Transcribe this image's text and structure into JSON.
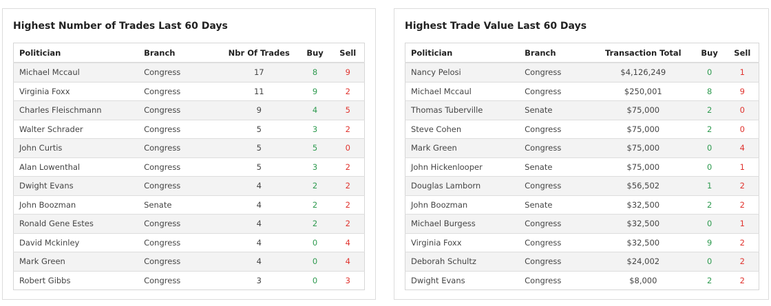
{
  "colors": {
    "buy": "#2e9a4f",
    "sell": "#e0332e",
    "row_alt": "#f3f3f3",
    "border": "#dddddd"
  },
  "trades_card": {
    "title": "Highest Number of Trades Last 60 Days",
    "columns": [
      "Politician",
      "Branch",
      "Nbr Of Trades",
      "Buy",
      "Sell"
    ],
    "rows": [
      {
        "politician": "Michael Mccaul",
        "branch": "Congress",
        "trades": "17",
        "buy": "8",
        "sell": "9"
      },
      {
        "politician": "Virginia Foxx",
        "branch": "Congress",
        "trades": "11",
        "buy": "9",
        "sell": "2"
      },
      {
        "politician": "Charles Fleischmann",
        "branch": "Congress",
        "trades": "9",
        "buy": "4",
        "sell": "5"
      },
      {
        "politician": "Walter Schrader",
        "branch": "Congress",
        "trades": "5",
        "buy": "3",
        "sell": "2"
      },
      {
        "politician": "John Curtis",
        "branch": "Congress",
        "trades": "5",
        "buy": "5",
        "sell": "0"
      },
      {
        "politician": "Alan Lowenthal",
        "branch": "Congress",
        "trades": "5",
        "buy": "3",
        "sell": "2"
      },
      {
        "politician": "Dwight Evans",
        "branch": "Congress",
        "trades": "4",
        "buy": "2",
        "sell": "2"
      },
      {
        "politician": "John Boozman",
        "branch": "Senate",
        "trades": "4",
        "buy": "2",
        "sell": "2"
      },
      {
        "politician": "Ronald Gene Estes",
        "branch": "Congress",
        "trades": "4",
        "buy": "2",
        "sell": "2"
      },
      {
        "politician": "David Mckinley",
        "branch": "Congress",
        "trades": "4",
        "buy": "0",
        "sell": "4"
      },
      {
        "politician": "Mark Green",
        "branch": "Congress",
        "trades": "4",
        "buy": "0",
        "sell": "4"
      },
      {
        "politician": "Robert Gibbs",
        "branch": "Congress",
        "trades": "3",
        "buy": "0",
        "sell": "3"
      }
    ]
  },
  "value_card": {
    "title": "Highest Trade Value Last 60 Days",
    "columns": [
      "Politician",
      "Branch",
      "Transaction Total",
      "Buy",
      "Sell"
    ],
    "rows": [
      {
        "politician": "Nancy Pelosi",
        "branch": "Congress",
        "total": "$4,126,249",
        "buy": "0",
        "sell": "1"
      },
      {
        "politician": "Michael Mccaul",
        "branch": "Congress",
        "total": "$250,001",
        "buy": "8",
        "sell": "9"
      },
      {
        "politician": "Thomas Tuberville",
        "branch": "Senate",
        "total": "$75,000",
        "buy": "2",
        "sell": "0"
      },
      {
        "politician": "Steve Cohen",
        "branch": "Congress",
        "total": "$75,000",
        "buy": "2",
        "sell": "0"
      },
      {
        "politician": "Mark Green",
        "branch": "Congress",
        "total": "$75,000",
        "buy": "0",
        "sell": "4"
      },
      {
        "politician": "John Hickenlooper",
        "branch": "Senate",
        "total": "$75,000",
        "buy": "0",
        "sell": "1"
      },
      {
        "politician": "Douglas Lamborn",
        "branch": "Congress",
        "total": "$56,502",
        "buy": "1",
        "sell": "2"
      },
      {
        "politician": "John Boozman",
        "branch": "Senate",
        "total": "$32,500",
        "buy": "2",
        "sell": "2"
      },
      {
        "politician": "Michael Burgess",
        "branch": "Congress",
        "total": "$32,500",
        "buy": "0",
        "sell": "1"
      },
      {
        "politician": "Virginia Foxx",
        "branch": "Congress",
        "total": "$32,500",
        "buy": "9",
        "sell": "2"
      },
      {
        "politician": "Deborah Schultz",
        "branch": "Congress",
        "total": "$24,002",
        "buy": "0",
        "sell": "2"
      },
      {
        "politician": "Dwight Evans",
        "branch": "Congress",
        "total": "$8,000",
        "buy": "2",
        "sell": "2"
      }
    ]
  }
}
